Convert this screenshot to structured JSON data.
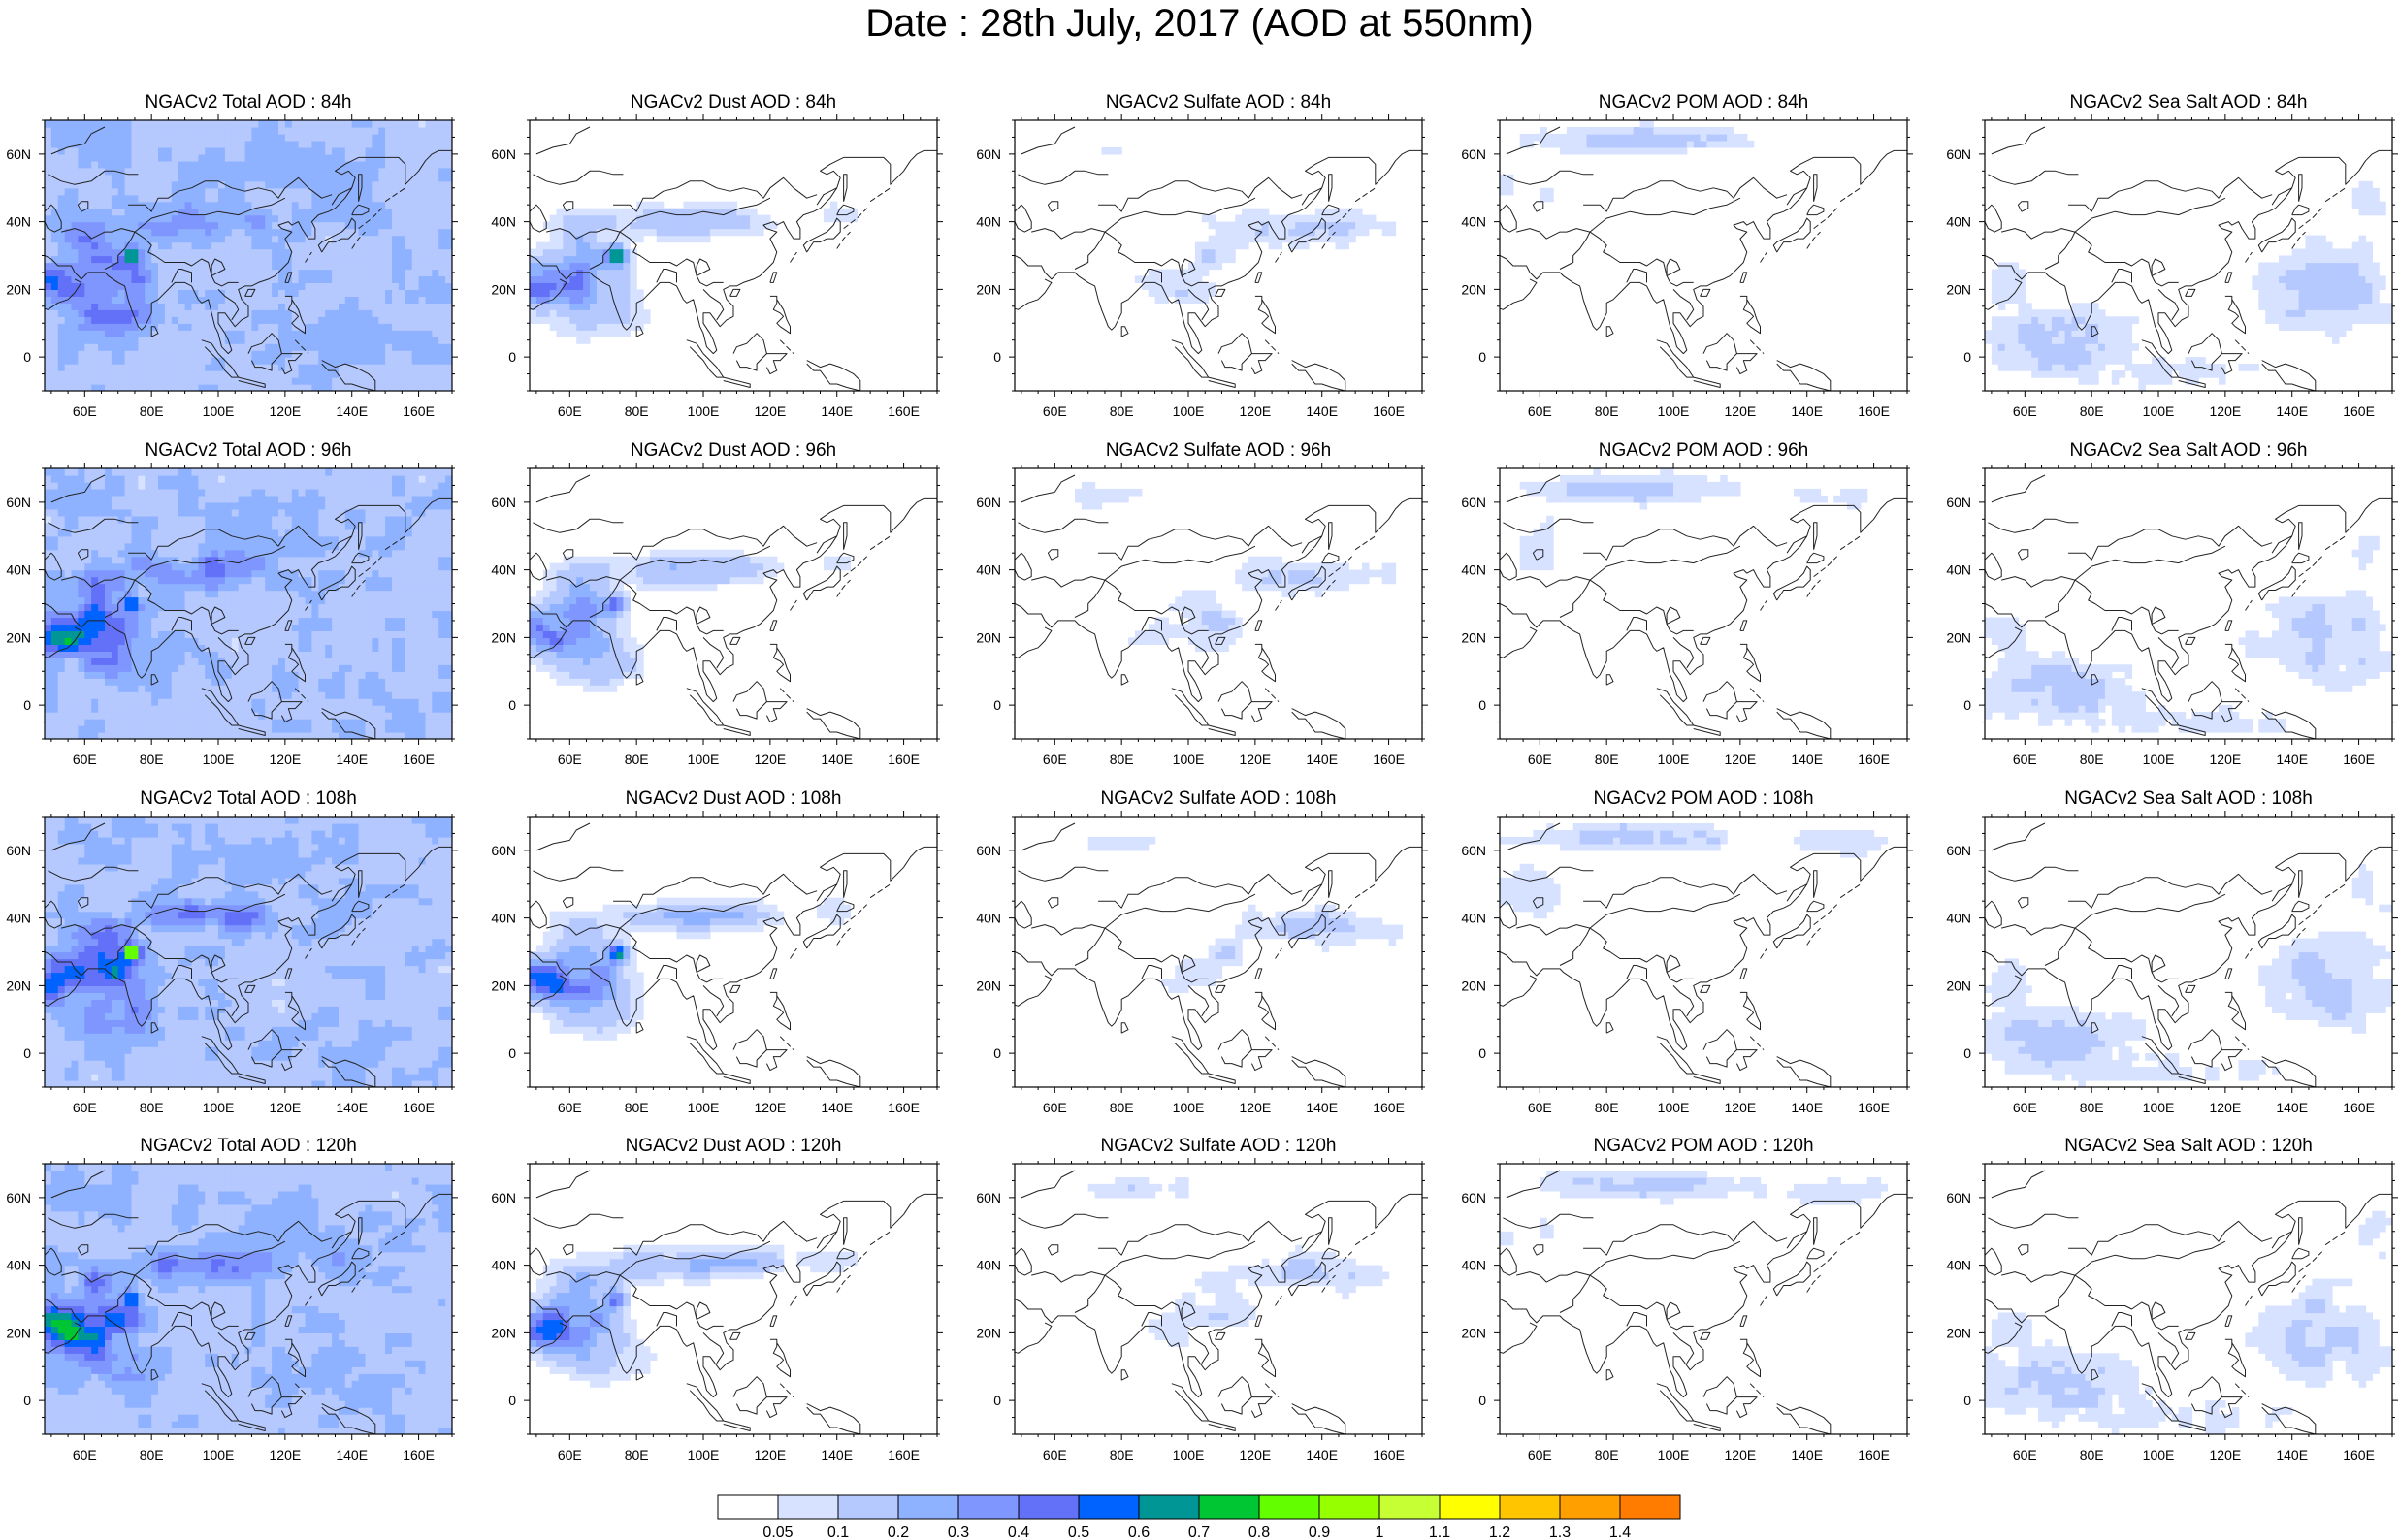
{
  "page_title": "Date : 28th July, 2017 (AOD at 550nm)",
  "chart_data": {
    "type": "heatmap",
    "title": "Date : 28th July, 2017 (AOD at 550nm)",
    "x_ticks": [
      "60E",
      "80E",
      "100E",
      "120E",
      "140E",
      "160E"
    ],
    "x_tick_values": [
      60,
      80,
      100,
      120,
      140,
      160
    ],
    "y_ticks": [
      "60N",
      "40N",
      "20N",
      "0"
    ],
    "y_tick_values": [
      60,
      40,
      20,
      0
    ],
    "xlim": [
      48,
      170
    ],
    "ylim": [
      -10,
      70
    ],
    "panels": [
      {
        "title": "NGACv2 Total AOD : 84h",
        "species": "total",
        "hour": 84
      },
      {
        "title": "NGACv2 Dust AOD : 84h",
        "species": "dust",
        "hour": 84
      },
      {
        "title": "NGACv2 Sulfate AOD : 84h",
        "species": "sulfate",
        "hour": 84
      },
      {
        "title": "NGACv2 POM AOD : 84h",
        "species": "pom",
        "hour": 84
      },
      {
        "title": "NGACv2 Sea Salt AOD : 84h",
        "species": "seasalt",
        "hour": 84
      },
      {
        "title": "NGACv2 Total AOD : 96h",
        "species": "total",
        "hour": 96
      },
      {
        "title": "NGACv2 Dust AOD : 96h",
        "species": "dust",
        "hour": 96
      },
      {
        "title": "NGACv2 Sulfate AOD : 96h",
        "species": "sulfate",
        "hour": 96
      },
      {
        "title": "NGACv2 POM AOD : 96h",
        "species": "pom",
        "hour": 96
      },
      {
        "title": "NGACv2 Sea Salt AOD : 96h",
        "species": "seasalt",
        "hour": 96
      },
      {
        "title": "NGACv2 Total AOD : 108h",
        "species": "total",
        "hour": 108
      },
      {
        "title": "NGACv2 Dust AOD : 108h",
        "species": "dust",
        "hour": 108
      },
      {
        "title": "NGACv2 Sulfate AOD : 108h",
        "species": "sulfate",
        "hour": 108
      },
      {
        "title": "NGACv2 POM AOD : 108h",
        "species": "pom",
        "hour": 108
      },
      {
        "title": "NGACv2 Sea Salt AOD : 108h",
        "species": "seasalt",
        "hour": 108
      },
      {
        "title": "NGACv2 Total AOD : 120h",
        "species": "total",
        "hour": 120
      },
      {
        "title": "NGACv2 Dust AOD : 120h",
        "species": "dust",
        "hour": 120
      },
      {
        "title": "NGACv2 Sulfate AOD : 120h",
        "species": "sulfate",
        "hour": 120
      },
      {
        "title": "NGACv2 POM AOD : 120h",
        "species": "pom",
        "hour": 120
      },
      {
        "title": "NGACv2 Sea Salt  AOD : 120h",
        "species": "seasalt",
        "hour": 120
      }
    ],
    "colorbar": {
      "labels": [
        "0.05",
        "0.1",
        "0.2",
        "0.3",
        "0.4",
        "0.5",
        "0.6",
        "0.7",
        "0.8",
        "0.9",
        "1",
        "1.1",
        "1.2",
        "1.3",
        "1.4"
      ],
      "colors": [
        "#ffffff",
        "#d6e2ff",
        "#b5c9ff",
        "#8eb2ff",
        "#7f96ff",
        "#6370f8",
        "#0063ff",
        "#009696",
        "#00c633",
        "#63ff00",
        "#96ff00",
        "#c6ff33",
        "#ffff00",
        "#ffc600",
        "#ffa000",
        "#ff7c00",
        "#ff1900"
      ]
    }
  }
}
